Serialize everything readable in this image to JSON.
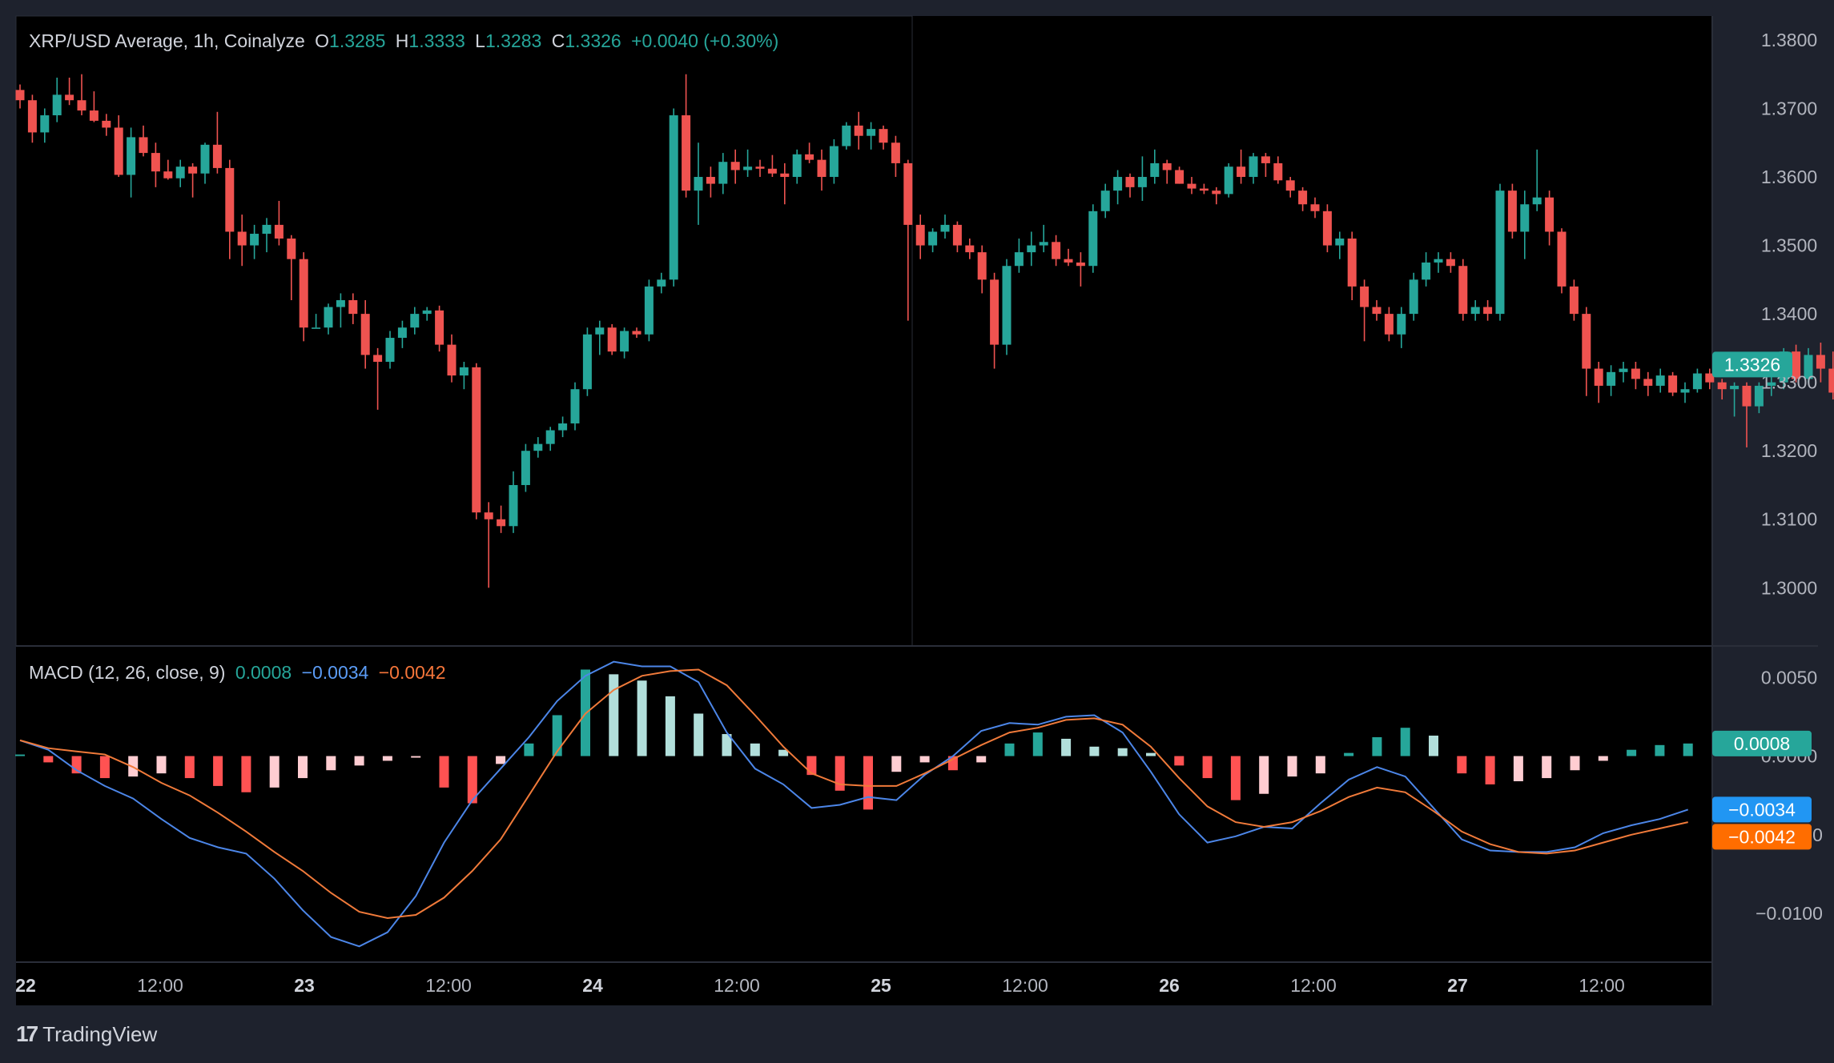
{
  "header": {
    "symbol": "XRP/USD Average, 1h, Coinalyze",
    "open_label": "O",
    "open": "1.3285",
    "high_label": "H",
    "high": "1.3333",
    "low_label": "L",
    "low": "1.3283",
    "close_label": "C",
    "close": "1.3326",
    "change": "+0.0040 (+0.30%)"
  },
  "macd_legend": {
    "title": "MACD (12, 26, close, 9)",
    "hist": "0.0008",
    "macd": "−0.0034",
    "signal": "−0.0042"
  },
  "brand": {
    "name": "TradingView",
    "logo": "17"
  },
  "colors": {
    "up": "#26a69a",
    "down": "#ef5350",
    "hist_up_grow": "#26a69a",
    "hist_up_fall": "#b2dfdb",
    "hist_down_grow": "#ff5252",
    "hist_down_fall": "#ffcdd2",
    "macd": "#2962ff",
    "signal": "#ff6d00",
    "background": "#000000",
    "frame": "#1e222d"
  },
  "chart_data": [
    {
      "type": "candlestick",
      "title": "XRP/USD Average, 1h, Coinalyze",
      "x_ticks": [
        "22",
        "12:00",
        "23",
        "12:00",
        "24",
        "12:00",
        "25",
        "12:00",
        "26",
        "12:00",
        "27",
        "12:00"
      ],
      "y_ticks": [
        "1.3800",
        "1.3700",
        "1.3600",
        "1.3500",
        "1.3400",
        "1.3300",
        "1.3200",
        "1.3100",
        "1.3000"
      ],
      "ylim": [
        1.2915,
        1.3835
      ],
      "last_price": "1.3326",
      "ohlc": [
        [
          1.3727,
          1.3735,
          1.37,
          1.3712
        ],
        [
          1.3712,
          1.372,
          1.365,
          1.3665
        ],
        [
          1.3665,
          1.37,
          1.365,
          1.369
        ],
        [
          1.369,
          1.3745,
          1.368,
          1.372
        ],
        [
          1.372,
          1.3745,
          1.3705,
          1.3712
        ],
        [
          1.3712,
          1.375,
          1.369,
          1.3697
        ],
        [
          1.3697,
          1.3725,
          1.368,
          1.3682
        ],
        [
          1.3682,
          1.3692,
          1.366,
          1.3672
        ],
        [
          1.3672,
          1.369,
          1.36,
          1.3603
        ],
        [
          1.3603,
          1.3672,
          1.357,
          1.3658
        ],
        [
          1.3658,
          1.3675,
          1.363,
          1.3635
        ],
        [
          1.3635,
          1.365,
          1.3585,
          1.3608
        ],
        [
          1.3608,
          1.3625,
          1.3596,
          1.3598
        ],
        [
          1.3598,
          1.3625,
          1.3585,
          1.3615
        ],
        [
          1.3615,
          1.362,
          1.357,
          1.3605
        ],
        [
          1.3605,
          1.365,
          1.359,
          1.3647
        ],
        [
          1.3647,
          1.3695,
          1.3605,
          1.3613
        ],
        [
          1.3613,
          1.3625,
          1.348,
          1.352
        ],
        [
          1.352,
          1.3545,
          1.347,
          1.35
        ],
        [
          1.35,
          1.353,
          1.348,
          1.3517
        ],
        [
          1.3517,
          1.354,
          1.349,
          1.353
        ],
        [
          1.353,
          1.3565,
          1.35,
          1.351
        ],
        [
          1.351,
          1.3515,
          1.342,
          1.348
        ],
        [
          1.348,
          1.349,
          1.336,
          1.338
        ],
        [
          1.338,
          1.34,
          1.338,
          1.338
        ],
        [
          1.338,
          1.3415,
          1.337,
          1.341
        ],
        [
          1.341,
          1.343,
          1.338,
          1.342
        ],
        [
          1.342,
          1.343,
          1.3385,
          1.34
        ],
        [
          1.34,
          1.342,
          1.332,
          1.334
        ],
        [
          1.334,
          1.335,
          1.326,
          1.333
        ],
        [
          1.333,
          1.3375,
          1.332,
          1.3365
        ],
        [
          1.3365,
          1.339,
          1.335,
          1.338
        ],
        [
          1.338,
          1.341,
          1.337,
          1.34
        ],
        [
          1.34,
          1.341,
          1.339,
          1.3405
        ],
        [
          1.3405,
          1.3412,
          1.3345,
          1.3355
        ],
        [
          1.3355,
          1.337,
          1.33,
          1.331
        ],
        [
          1.331,
          1.333,
          1.329,
          1.3322
        ],
        [
          1.3322,
          1.3328,
          1.31,
          1.311
        ],
        [
          1.311,
          1.3125,
          1.3,
          1.31
        ],
        [
          1.31,
          1.312,
          1.308,
          1.309
        ],
        [
          1.309,
          1.317,
          1.308,
          1.315
        ],
        [
          1.315,
          1.321,
          1.314,
          1.32
        ],
        [
          1.32,
          1.322,
          1.319,
          1.321
        ],
        [
          1.321,
          1.3235,
          1.32,
          1.323
        ],
        [
          1.323,
          1.325,
          1.322,
          1.324
        ],
        [
          1.324,
          1.33,
          1.323,
          1.329
        ],
        [
          1.329,
          1.338,
          1.328,
          1.337
        ],
        [
          1.337,
          1.339,
          1.334,
          1.338
        ],
        [
          1.338,
          1.3385,
          1.334,
          1.3345
        ],
        [
          1.3345,
          1.338,
          1.3335,
          1.3375
        ],
        [
          1.3375,
          1.338,
          1.3365,
          1.337
        ],
        [
          1.337,
          1.345,
          1.336,
          1.344
        ],
        [
          1.344,
          1.346,
          1.343,
          1.345
        ],
        [
          1.345,
          1.37,
          1.344,
          1.369
        ],
        [
          1.369,
          1.375,
          1.357,
          1.358
        ],
        [
          1.358,
          1.365,
          1.353,
          1.36
        ],
        [
          1.36,
          1.3615,
          1.357,
          1.359
        ],
        [
          1.359,
          1.3635,
          1.3575,
          1.3622
        ],
        [
          1.3622,
          1.364,
          1.359,
          1.361
        ],
        [
          1.361,
          1.364,
          1.36,
          1.3615
        ],
        [
          1.3615,
          1.3625,
          1.36,
          1.3612
        ],
        [
          1.3612,
          1.3632,
          1.36,
          1.3605
        ],
        [
          1.3605,
          1.362,
          1.356,
          1.36
        ],
        [
          1.36,
          1.364,
          1.359,
          1.3633
        ],
        [
          1.3633,
          1.365,
          1.362,
          1.3625
        ],
        [
          1.3625,
          1.364,
          1.358,
          1.36
        ],
        [
          1.36,
          1.3655,
          1.359,
          1.3645
        ],
        [
          1.3645,
          1.368,
          1.364,
          1.3675
        ],
        [
          1.3675,
          1.3695,
          1.364,
          1.366
        ],
        [
          1.366,
          1.368,
          1.364,
          1.367
        ],
        [
          1.367,
          1.3675,
          1.364,
          1.365
        ],
        [
          1.365,
          1.366,
          1.36,
          1.362
        ],
        [
          1.362,
          1.3625,
          1.339,
          1.353
        ],
        [
          1.353,
          1.3545,
          1.348,
          1.35
        ],
        [
          1.35,
          1.3525,
          1.349,
          1.352
        ],
        [
          1.352,
          1.3545,
          1.351,
          1.353
        ],
        [
          1.353,
          1.3535,
          1.349,
          1.35
        ],
        [
          1.35,
          1.351,
          1.348,
          1.349
        ],
        [
          1.349,
          1.35,
          1.343,
          1.345
        ],
        [
          1.345,
          1.346,
          1.332,
          1.3355
        ],
        [
          1.3355,
          1.348,
          1.334,
          1.347
        ],
        [
          1.347,
          1.351,
          1.346,
          1.349
        ],
        [
          1.349,
          1.352,
          1.347,
          1.35
        ],
        [
          1.35,
          1.353,
          1.349,
          1.3505
        ],
        [
          1.3505,
          1.3515,
          1.347,
          1.348
        ],
        [
          1.348,
          1.3495,
          1.347,
          1.3475
        ],
        [
          1.3475,
          1.349,
          1.344,
          1.347
        ],
        [
          1.347,
          1.356,
          1.346,
          1.355
        ],
        [
          1.355,
          1.359,
          1.354,
          1.358
        ],
        [
          1.358,
          1.361,
          1.356,
          1.36
        ],
        [
          1.36,
          1.3605,
          1.357,
          1.3585
        ],
        [
          1.3585,
          1.363,
          1.3565,
          1.36
        ],
        [
          1.36,
          1.364,
          1.359,
          1.362
        ],
        [
          1.362,
          1.3625,
          1.359,
          1.361
        ],
        [
          1.361,
          1.3615,
          1.359,
          1.359
        ],
        [
          1.359,
          1.36,
          1.3575,
          1.3583
        ],
        [
          1.3583,
          1.359,
          1.3575,
          1.358
        ],
        [
          1.358,
          1.3585,
          1.356,
          1.3575
        ],
        [
          1.3575,
          1.362,
          1.357,
          1.3615
        ],
        [
          1.3615,
          1.364,
          1.359,
          1.36
        ],
        [
          1.36,
          1.3635,
          1.359,
          1.363
        ],
        [
          1.363,
          1.3635,
          1.36,
          1.362
        ],
        [
          1.362,
          1.363,
          1.359,
          1.3595
        ],
        [
          1.3595,
          1.36,
          1.357,
          1.358
        ],
        [
          1.358,
          1.3585,
          1.355,
          1.356
        ],
        [
          1.356,
          1.357,
          1.354,
          1.355
        ],
        [
          1.355,
          1.356,
          1.349,
          1.35
        ],
        [
          1.35,
          1.352,
          1.348,
          1.351
        ],
        [
          1.351,
          1.352,
          1.342,
          1.344
        ],
        [
          1.344,
          1.345,
          1.336,
          1.341
        ],
        [
          1.341,
          1.342,
          1.339,
          1.34
        ],
        [
          1.34,
          1.341,
          1.336,
          1.337
        ],
        [
          1.337,
          1.341,
          1.335,
          1.34
        ],
        [
          1.34,
          1.346,
          1.339,
          1.345
        ],
        [
          1.345,
          1.349,
          1.344,
          1.3475
        ],
        [
          1.3475,
          1.349,
          1.346,
          1.348
        ],
        [
          1.348,
          1.349,
          1.346,
          1.347
        ],
        [
          1.347,
          1.348,
          1.339,
          1.34
        ],
        [
          1.34,
          1.342,
          1.339,
          1.341
        ],
        [
          1.341,
          1.342,
          1.339,
          1.34
        ],
        [
          1.34,
          1.359,
          1.339,
          1.358
        ],
        [
          1.358,
          1.359,
          1.351,
          1.352
        ],
        [
          1.352,
          1.358,
          1.348,
          1.356
        ],
        [
          1.356,
          1.364,
          1.355,
          1.357
        ],
        [
          1.357,
          1.358,
          1.35,
          1.352
        ],
        [
          1.352,
          1.3525,
          1.343,
          1.344
        ],
        [
          1.344,
          1.345,
          1.339,
          1.34
        ],
        [
          1.34,
          1.341,
          1.328,
          1.332
        ],
        [
          1.332,
          1.333,
          1.327,
          1.3295
        ],
        [
          1.3295,
          1.3325,
          1.328,
          1.3315
        ],
        [
          1.3315,
          1.333,
          1.33,
          1.332
        ],
        [
          1.332,
          1.333,
          1.329,
          1.3305
        ],
        [
          1.3305,
          1.3315,
          1.328,
          1.3295
        ],
        [
          1.3295,
          1.332,
          1.3285,
          1.331
        ],
        [
          1.331,
          1.3315,
          1.328,
          1.3285
        ],
        [
          1.3285,
          1.33,
          1.327,
          1.329
        ],
        [
          1.329,
          1.332,
          1.3285,
          1.3313
        ],
        [
          1.3313,
          1.332,
          1.329,
          1.33
        ],
        [
          1.33,
          1.3305,
          1.3275,
          1.329
        ],
        [
          1.329,
          1.33,
          1.325,
          1.3295
        ],
        [
          1.3295,
          1.33,
          1.3205,
          1.3265
        ],
        [
          1.3265,
          1.33,
          1.3255,
          1.3295
        ],
        [
          1.3295,
          1.331,
          1.328,
          1.33
        ],
        [
          1.33,
          1.335,
          1.329,
          1.3345
        ],
        [
          1.3345,
          1.3355,
          1.33,
          1.3305
        ],
        [
          1.3305,
          1.335,
          1.33,
          1.334
        ],
        [
          1.334,
          1.3358,
          1.33,
          1.332
        ],
        [
          1.332,
          1.3345,
          1.3275,
          1.3285
        ],
        [
          1.3285,
          1.3333,
          1.3283,
          1.3326
        ]
      ]
    },
    {
      "type": "macd",
      "title": "MACD (12, 26, close, 9)",
      "y_ticks": [
        "0.0050",
        "0.0000",
        "−0.0050",
        "−0.0100"
      ],
      "ylim": [
        -0.0131,
        0.007
      ],
      "macd": [
        0.001,
        0.0004,
        -0.0009,
        -0.0019,
        -0.0027,
        -0.004,
        -0.0052,
        -0.0058,
        -0.0062,
        -0.0078,
        -0.0098,
        -0.0115,
        -0.0121,
        -0.0112,
        -0.0089,
        -0.0055,
        -0.0028,
        -0.0008,
        0.0012,
        0.0035,
        0.0051,
        0.006,
        0.0057,
        0.0057,
        0.0047,
        0.0015,
        -0.0008,
        -0.0018,
        -0.0033,
        -0.0031,
        -0.0026,
        -0.0028,
        -0.0012,
        0.0,
        0.0016,
        0.0021,
        0.002,
        0.0025,
        0.0026,
        0.0015,
        -0.001,
        -0.0037,
        -0.0055,
        -0.0051,
        -0.0045,
        -0.0046,
        -0.003,
        -0.0015,
        -0.0007,
        -0.0013,
        -0.0033,
        -0.0053,
        -0.006,
        -0.0061,
        -0.0061,
        -0.0058,
        -0.0049,
        -0.0044,
        -0.004,
        -0.0034
      ],
      "signal": [
        0.001,
        0.0005,
        0.0003,
        0.0001,
        -0.0007,
        -0.0017,
        -0.0025,
        -0.0036,
        -0.0048,
        -0.0061,
        -0.0073,
        -0.0087,
        -0.0099,
        -0.0103,
        -0.0101,
        -0.009,
        -0.0073,
        -0.0053,
        -0.0025,
        0.0003,
        0.0027,
        0.0042,
        0.0051,
        0.0054,
        0.0055,
        0.0045,
        0.0026,
        0.0006,
        -0.0011,
        -0.0018,
        -0.0019,
        -0.0019,
        -0.0011,
        -0.0002,
        0.0007,
        0.0015,
        0.0018,
        0.0023,
        0.0024,
        0.002,
        0.0006,
        -0.0014,
        -0.0032,
        -0.0042,
        -0.0045,
        -0.0042,
        -0.0035,
        -0.0026,
        -0.002,
        -0.0023,
        -0.0035,
        -0.0048,
        -0.0056,
        -0.0061,
        -0.0062,
        -0.006,
        -0.0055,
        -0.005,
        -0.0046,
        -0.0042
      ],
      "histogram": [
        0.0001,
        -0.0004,
        -0.0011,
        -0.0014,
        -0.0013,
        -0.0011,
        -0.0014,
        -0.0019,
        -0.0023,
        -0.002,
        -0.0014,
        -0.0009,
        -0.0006,
        -0.0003,
        -0.0001,
        -0.002,
        -0.003,
        -0.0005,
        0.0008,
        0.0026,
        0.0055,
        0.0052,
        0.0048,
        0.0038,
        0.0027,
        0.0014,
        0.0008,
        0.0004,
        -0.0012,
        -0.0022,
        -0.0034,
        -0.001,
        -0.0004,
        -0.0009,
        -0.0004,
        0.0008,
        0.0015,
        0.0011,
        0.0006,
        0.0005,
        0.0002,
        -0.0006,
        -0.0014,
        -0.0028,
        -0.0024,
        -0.0013,
        -0.0011,
        0.0002,
        0.0012,
        0.0018,
        0.0013,
        -0.0011,
        -0.0018,
        -0.0016,
        -0.0014,
        -0.0009,
        -0.0003,
        0.0004,
        0.0007,
        0.0008
      ],
      "last_values": {
        "histogram": "0.0008",
        "macd": "−0.0034",
        "signal": "−0.0042"
      }
    }
  ]
}
